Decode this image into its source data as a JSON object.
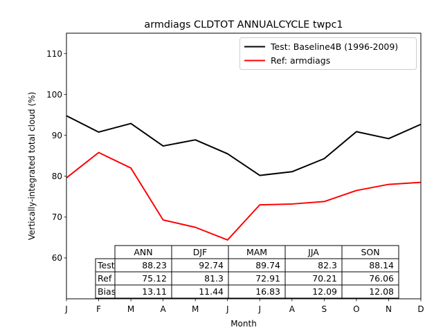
{
  "chart_data": {
    "type": "line",
    "title": "armdiags CLDTOT ANNUALCYCLE twpc1",
    "xlabel": "Month",
    "ylabel": "Vertically-integrated total cloud (%)",
    "categories": [
      "J",
      "F",
      "M",
      "A",
      "M",
      "J",
      "J",
      "A",
      "S",
      "O",
      "N",
      "D"
    ],
    "ylim": [
      50,
      115
    ],
    "yticks": [
      60,
      70,
      80,
      90,
      100,
      110
    ],
    "grid": false,
    "legend_position": "top-right",
    "series": [
      {
        "name": "Test: Baseline4B (1996-2009)",
        "color": "#000000",
        "values": [
          94.8,
          90.8,
          92.9,
          87.4,
          88.9,
          85.5,
          80.2,
          81.1,
          84.3,
          90.9,
          89.2,
          92.7
        ]
      },
      {
        "name": "Ref: armdiags",
        "color": "#ff0000",
        "values": [
          79.6,
          85.8,
          82.0,
          69.3,
          67.5,
          64.4,
          73.0,
          73.2,
          73.8,
          76.5,
          78.0,
          78.5
        ]
      }
    ],
    "table": {
      "columns": [
        "ANN",
        "DJF",
        "MAM",
        "JJA",
        "SON"
      ],
      "rows": [
        {
          "label": "Test",
          "cells": [
            "88.23",
            "92.74",
            "89.74",
            "82.3",
            "88.14"
          ]
        },
        {
          "label": "Ref",
          "cells": [
            "75.12",
            "81.3",
            "72.91",
            "70.21",
            "76.06"
          ]
        },
        {
          "label": "Bias",
          "cells": [
            "13.11",
            "11.44",
            "16.83",
            "12.09",
            "12.08"
          ]
        }
      ]
    }
  }
}
